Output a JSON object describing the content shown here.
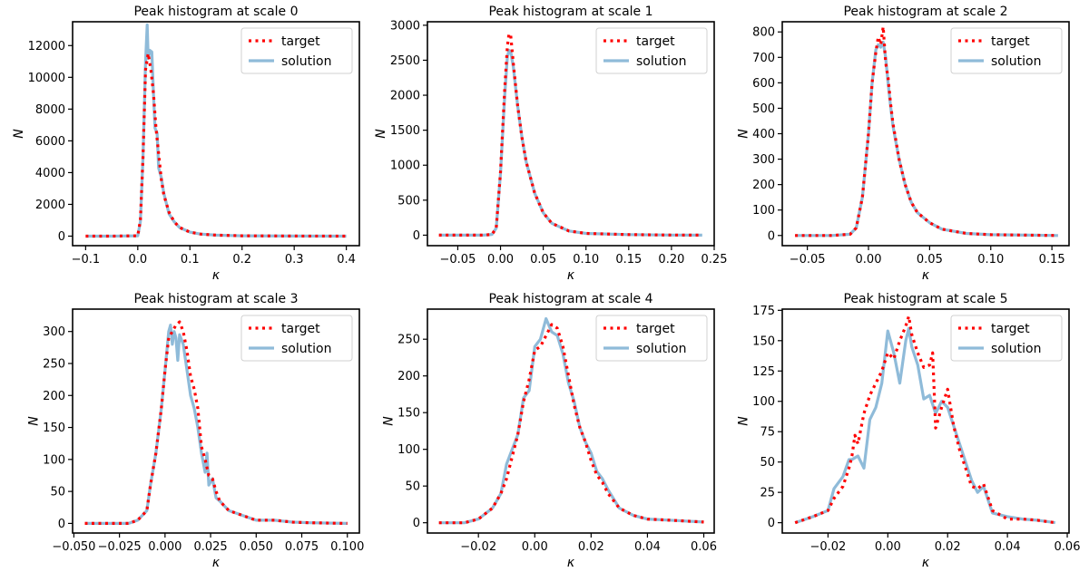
{
  "chart_data": [
    {
      "type": "line",
      "title": "Peak histogram at scale 0",
      "xlabel": "κ",
      "ylabel": "N",
      "xlim": [
        -0.125,
        0.425
      ],
      "ylim": [
        -600,
        13500
      ],
      "xticks": [
        -0.1,
        0.0,
        0.1,
        0.2,
        0.3,
        0.4
      ],
      "xtick_labels": [
        "−0.1",
        "0.0",
        "0.1",
        "0.2",
        "0.3",
        "0.4"
      ],
      "yticks": [
        0,
        2000,
        4000,
        6000,
        8000,
        10000,
        12000
      ],
      "ytick_labels": [
        "0",
        "2000",
        "4000",
        "6000",
        "8000",
        "10000",
        "12000"
      ],
      "legend": [
        "target",
        "solution"
      ],
      "series": [
        {
          "name": "target",
          "x": [
            -0.1,
            -0.05,
            0.0,
            0.005,
            0.01,
            0.015,
            0.02,
            0.025,
            0.03,
            0.035,
            0.04,
            0.045,
            0.05,
            0.06,
            0.07,
            0.08,
            0.1,
            0.12,
            0.15,
            0.2,
            0.3,
            0.4
          ],
          "y": [
            0,
            0,
            20,
            1000,
            5000,
            10500,
            11500,
            10500,
            9000,
            6800,
            5200,
            3600,
            2600,
            1500,
            900,
            550,
            250,
            130,
            60,
            20,
            5,
            0
          ]
        },
        {
          "name": "solution",
          "x": [
            -0.1,
            -0.05,
            0.0,
            0.005,
            0.01,
            0.015,
            0.018,
            0.02,
            0.023,
            0.027,
            0.03,
            0.033,
            0.037,
            0.04,
            0.045,
            0.05,
            0.06,
            0.07,
            0.08,
            0.1,
            0.12,
            0.15,
            0.2,
            0.3,
            0.4
          ],
          "y": [
            0,
            0,
            20,
            900,
            5000,
            11000,
            13300,
            11200,
            11700,
            11600,
            9000,
            6800,
            6500,
            4300,
            3700,
            2700,
            1400,
            900,
            550,
            250,
            130,
            60,
            20,
            5,
            0
          ]
        }
      ]
    },
    {
      "type": "line",
      "title": "Peak histogram at scale 1",
      "xlabel": "κ",
      "ylabel": "N",
      "xlim": [
        -0.0855,
        0.25
      ],
      "ylim": [
        -150,
        3050
      ],
      "xticks": [
        -0.05,
        0.0,
        0.05,
        0.1,
        0.15,
        0.2,
        0.25
      ],
      "xtick_labels": [
        "−0.05",
        "0.00",
        "0.05",
        "0.10",
        "0.15",
        "0.20",
        "0.25"
      ],
      "yticks": [
        0,
        500,
        1000,
        1500,
        2000,
        2500,
        3000
      ],
      "ytick_labels": [
        "0",
        "500",
        "1000",
        "1500",
        "2000",
        "2500",
        "3000"
      ],
      "legend": [
        "target",
        "solution"
      ],
      "series": [
        {
          "name": "target",
          "x": [
            -0.072,
            -0.02,
            -0.01,
            -0.005,
            0.0,
            0.005,
            0.008,
            0.01,
            0.012,
            0.015,
            0.02,
            0.025,
            0.03,
            0.04,
            0.05,
            0.06,
            0.08,
            0.1,
            0.15,
            0.2,
            0.236
          ],
          "y": [
            0,
            0,
            10,
            100,
            900,
            2100,
            2700,
            2880,
            2850,
            2450,
            1850,
            1400,
            1050,
            600,
            320,
            170,
            60,
            25,
            8,
            2,
            0
          ]
        },
        {
          "name": "solution",
          "x": [
            -0.072,
            -0.02,
            -0.01,
            -0.005,
            0.0,
            0.005,
            0.008,
            0.01,
            0.012,
            0.015,
            0.02,
            0.025,
            0.03,
            0.04,
            0.05,
            0.06,
            0.08,
            0.1,
            0.15,
            0.2,
            0.236
          ],
          "y": [
            0,
            0,
            10,
            100,
            880,
            2000,
            2550,
            2640,
            2620,
            2400,
            1850,
            1400,
            1050,
            600,
            320,
            170,
            60,
            25,
            8,
            2,
            0
          ]
        }
      ]
    },
    {
      "type": "line",
      "title": "Peak histogram at scale 2",
      "xlabel": "κ",
      "ylabel": "N",
      "xlim": [
        -0.0705,
        0.164
      ],
      "ylim": [
        -40,
        840
      ],
      "xticks": [
        -0.05,
        0.0,
        0.05,
        0.1,
        0.15
      ],
      "xtick_labels": [
        "−0.05",
        "0.00",
        "0.05",
        "0.10",
        "0.15"
      ],
      "yticks": [
        0,
        100,
        200,
        300,
        400,
        500,
        600,
        700,
        800
      ],
      "ytick_labels": [
        "0",
        "100",
        "200",
        "300",
        "400",
        "500",
        "600",
        "700",
        "800"
      ],
      "legend": [
        "target",
        "solution"
      ],
      "series": [
        {
          "name": "target",
          "x": [
            -0.06,
            -0.03,
            -0.015,
            -0.01,
            -0.005,
            0.0,
            0.003,
            0.006,
            0.008,
            0.01,
            0.012,
            0.014,
            0.016,
            0.018,
            0.02,
            0.025,
            0.03,
            0.035,
            0.04,
            0.05,
            0.06,
            0.08,
            0.1,
            0.155
          ],
          "y": [
            0,
            0,
            5,
            30,
            150,
            400,
            600,
            720,
            780,
            750,
            820,
            680,
            620,
            520,
            440,
            300,
            200,
            130,
            90,
            50,
            25,
            8,
            3,
            0
          ]
        },
        {
          "name": "solution",
          "x": [
            -0.06,
            -0.03,
            -0.015,
            -0.01,
            -0.005,
            0.0,
            0.003,
            0.006,
            0.008,
            0.01,
            0.012,
            0.014,
            0.016,
            0.018,
            0.02,
            0.025,
            0.03,
            0.035,
            0.04,
            0.05,
            0.06,
            0.08,
            0.1,
            0.155
          ],
          "y": [
            0,
            0,
            5,
            30,
            150,
            400,
            600,
            730,
            750,
            740,
            760,
            700,
            600,
            510,
            430,
            300,
            200,
            130,
            90,
            50,
            25,
            8,
            3,
            0
          ]
        }
      ]
    },
    {
      "type": "line",
      "title": "Peak histogram at scale 3",
      "xlabel": "κ",
      "ylabel": "N",
      "xlim": [
        -0.0507,
        0.1066
      ],
      "ylim": [
        -15,
        335
      ],
      "xticks": [
        -0.05,
        -0.025,
        0.0,
        0.025,
        0.05,
        0.075,
        0.1
      ],
      "xtick_labels": [
        "−0.050",
        "−0.025",
        "0.000",
        "0.025",
        "0.050",
        "0.075",
        "0.100"
      ],
      "yticks": [
        0,
        50,
        100,
        150,
        200,
        250,
        300
      ],
      "ytick_labels": [
        "0",
        "50",
        "100",
        "150",
        "200",
        "250",
        "300"
      ],
      "legend": [
        "target",
        "solution"
      ],
      "series": [
        {
          "name": "target",
          "x": [
            -0.044,
            -0.02,
            -0.015,
            -0.01,
            -0.008,
            -0.005,
            -0.002,
            0.0,
            0.002,
            0.004,
            0.006,
            0.008,
            0.01,
            0.012,
            0.014,
            0.016,
            0.018,
            0.02,
            0.022,
            0.024,
            0.026,
            0.028,
            0.03,
            0.035,
            0.04,
            0.045,
            0.05,
            0.06,
            0.07,
            0.08,
            0.1
          ],
          "y": [
            0,
            0,
            5,
            20,
            60,
            110,
            180,
            240,
            290,
            300,
            310,
            315,
            300,
            270,
            230,
            210,
            180,
            120,
            100,
            75,
            70,
            50,
            35,
            20,
            15,
            10,
            5,
            5,
            2,
            1,
            0
          ]
        },
        {
          "name": "solution",
          "x": [
            -0.044,
            -0.02,
            -0.015,
            -0.01,
            -0.008,
            -0.005,
            -0.002,
            0.0,
            0.002,
            0.003,
            0.004,
            0.005,
            0.006,
            0.007,
            0.008,
            0.01,
            0.012,
            0.014,
            0.016,
            0.018,
            0.02,
            0.022,
            0.023,
            0.024,
            0.026,
            0.028,
            0.03,
            0.035,
            0.04,
            0.045,
            0.05,
            0.06,
            0.07,
            0.08,
            0.1
          ],
          "y": [
            0,
            0,
            5,
            20,
            60,
            110,
            180,
            240,
            300,
            310,
            280,
            300,
            290,
            255,
            295,
            280,
            240,
            200,
            180,
            150,
            110,
            80,
            110,
            60,
            70,
            40,
            35,
            20,
            15,
            10,
            5,
            5,
            2,
            1,
            0
          ]
        }
      ]
    },
    {
      "type": "line",
      "title": "Peak histogram at scale 4",
      "xlabel": "κ",
      "ylabel": "N",
      "xlim": [
        -0.0381,
        0.0637
      ],
      "ylim": [
        -14,
        291
      ],
      "xticks": [
        -0.02,
        0.0,
        0.02,
        0.04,
        0.06
      ],
      "xtick_labels": [
        "−0.02",
        "0.00",
        "0.02",
        "0.04",
        "0.06"
      ],
      "yticks": [
        0,
        50,
        100,
        150,
        200,
        250
      ],
      "ytick_labels": [
        "0",
        "50",
        "100",
        "150",
        "200",
        "250"
      ],
      "legend": [
        "target",
        "solution"
      ],
      "series": [
        {
          "name": "target",
          "x": [
            -0.034,
            -0.025,
            -0.02,
            -0.015,
            -0.012,
            -0.01,
            -0.008,
            -0.006,
            -0.004,
            -0.002,
            0.0,
            0.002,
            0.004,
            0.006,
            0.008,
            0.01,
            0.012,
            0.014,
            0.016,
            0.018,
            0.02,
            0.022,
            0.024,
            0.026,
            0.03,
            0.035,
            0.04,
            0.05,
            0.06
          ],
          "y": [
            0,
            0,
            5,
            20,
            40,
            60,
            90,
            120,
            165,
            195,
            235,
            240,
            255,
            270,
            265,
            240,
            200,
            160,
            130,
            110,
            85,
            65,
            55,
            40,
            20,
            10,
            5,
            3,
            1
          ]
        },
        {
          "name": "solution",
          "x": [
            -0.034,
            -0.025,
            -0.02,
            -0.015,
            -0.012,
            -0.01,
            -0.008,
            -0.006,
            -0.004,
            -0.002,
            0.0,
            0.002,
            0.004,
            0.006,
            0.008,
            0.01,
            0.012,
            0.014,
            0.016,
            0.018,
            0.02,
            0.022,
            0.024,
            0.026,
            0.03,
            0.035,
            0.04,
            0.05,
            0.06
          ],
          "y": [
            0,
            0,
            5,
            20,
            40,
            80,
            100,
            120,
            170,
            180,
            240,
            250,
            278,
            260,
            255,
            230,
            190,
            165,
            130,
            110,
            95,
            70,
            60,
            45,
            20,
            10,
            5,
            3,
            1
          ]
        }
      ]
    },
    {
      "type": "line",
      "title": "Peak histogram at scale 5",
      "xlabel": "κ",
      "ylabel": "N",
      "xlim": [
        -0.0353,
        0.0606
      ],
      "ylim": [
        -8.5,
        176
      ],
      "xticks": [
        -0.02,
        0.0,
        0.02,
        0.04,
        0.06
      ],
      "xtick_labels": [
        "−0.02",
        "0.00",
        "0.02",
        "0.04",
        "0.06"
      ],
      "yticks": [
        0,
        25,
        50,
        75,
        100,
        125,
        150,
        175
      ],
      "ytick_labels": [
        "0",
        "25",
        "50",
        "75",
        "100",
        "125",
        "150",
        "175"
      ],
      "legend": [
        "target",
        "solution"
      ],
      "series": [
        {
          "name": "target",
          "x": [
            -0.031,
            -0.025,
            -0.02,
            -0.018,
            -0.015,
            -0.013,
            -0.012,
            -0.011,
            -0.01,
            -0.008,
            -0.006,
            -0.004,
            -0.002,
            0.0,
            0.002,
            0.004,
            0.006,
            0.007,
            0.008,
            0.01,
            0.012,
            0.014,
            0.015,
            0.016,
            0.018,
            0.02,
            0.022,
            0.024,
            0.026,
            0.028,
            0.03,
            0.032,
            0.035,
            0.04,
            0.045,
            0.05,
            0.056
          ],
          "y": [
            0,
            5,
            10,
            20,
            30,
            45,
            55,
            72,
            65,
            90,
            105,
            115,
            125,
            140,
            135,
            150,
            162,
            170,
            155,
            140,
            128,
            130,
            140,
            78,
            95,
            110,
            80,
            60,
            45,
            30,
            28,
            32,
            10,
            3,
            3,
            2,
            0
          ]
        },
        {
          "name": "solution",
          "x": [
            -0.031,
            -0.025,
            -0.02,
            -0.018,
            -0.015,
            -0.013,
            -0.012,
            -0.01,
            -0.008,
            -0.006,
            -0.004,
            -0.002,
            0.0,
            0.002,
            0.004,
            0.006,
            0.007,
            0.008,
            0.01,
            0.012,
            0.014,
            0.016,
            0.018,
            0.02,
            0.022,
            0.024,
            0.026,
            0.028,
            0.03,
            0.032,
            0.035,
            0.04,
            0.045,
            0.05,
            0.056
          ],
          "y": [
            0,
            5,
            10,
            28,
            38,
            52,
            52,
            55,
            45,
            85,
            95,
            115,
            158,
            140,
            115,
            150,
            160,
            145,
            130,
            102,
            105,
            90,
            100,
            95,
            80,
            65,
            50,
            35,
            25,
            30,
            8,
            5,
            3,
            2,
            0
          ]
        }
      ]
    }
  ]
}
